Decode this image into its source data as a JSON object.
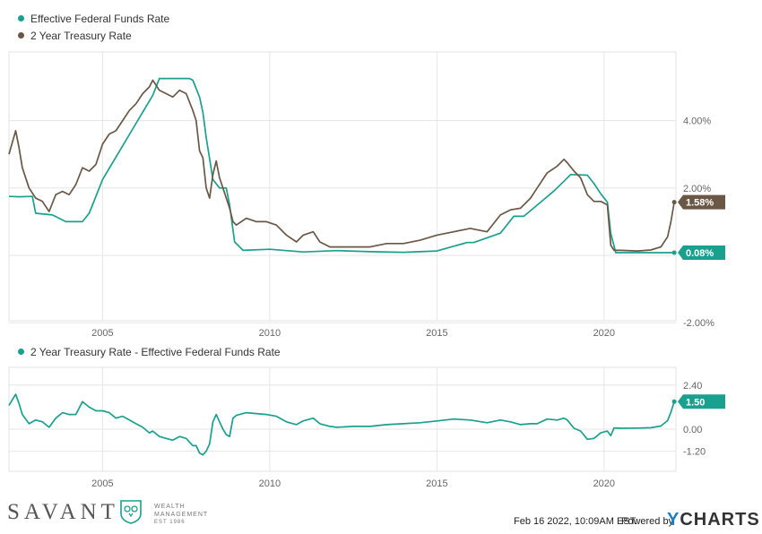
{
  "chart_data": [
    {
      "type": "line",
      "series": [
        {
          "name": "Effective Federal Funds Rate",
          "color": "#1aa08e",
          "x": [
            2002.2,
            2002.5,
            2002.9,
            2003.0,
            2003.5,
            2003.9,
            2004.4,
            2004.6,
            2004.8,
            2005.0,
            2005.3,
            2005.6,
            2005.9,
            2006.2,
            2006.5,
            2006.7,
            2007.0,
            2007.3,
            2007.6,
            2007.7,
            2007.9,
            2008.0,
            2008.1,
            2008.3,
            2008.5,
            2008.7,
            2008.8,
            2008.95,
            2009.2,
            2010.0,
            2011.0,
            2012.0,
            2013.0,
            2014.0,
            2015.0,
            2015.9,
            2016.1,
            2016.9,
            2017.1,
            2017.3,
            2017.6,
            2017.9,
            2018.2,
            2018.5,
            2018.8,
            2019.0,
            2019.5,
            2019.7,
            2019.9,
            2020.1,
            2020.2,
            2020.35,
            2021.0,
            2022.0,
            2022.1
          ],
          "values": [
            1.75,
            1.74,
            1.75,
            1.25,
            1.2,
            1.0,
            1.0,
            1.25,
            1.75,
            2.25,
            2.75,
            3.25,
            3.75,
            4.25,
            4.75,
            5.25,
            5.25,
            5.25,
            5.25,
            5.2,
            4.7,
            4.25,
            3.5,
            2.25,
            2.0,
            2.0,
            1.5,
            0.4,
            0.15,
            0.18,
            0.1,
            0.14,
            0.11,
            0.09,
            0.13,
            0.38,
            0.38,
            0.66,
            0.91,
            1.16,
            1.16,
            1.41,
            1.66,
            1.91,
            2.2,
            2.4,
            2.38,
            2.13,
            1.83,
            1.58,
            0.65,
            0.08,
            0.08,
            0.08,
            0.08
          ]
        },
        {
          "name": "2 Year Treasury Rate",
          "color": "#6b5745",
          "x": [
            2002.2,
            2002.4,
            2002.5,
            2002.6,
            2002.8,
            2003.0,
            2003.2,
            2003.4,
            2003.6,
            2003.8,
            2004.0,
            2004.2,
            2004.4,
            2004.6,
            2004.8,
            2005.0,
            2005.2,
            2005.4,
            2005.6,
            2005.8,
            2006.0,
            2006.2,
            2006.4,
            2006.5,
            2006.7,
            2006.9,
            2007.1,
            2007.3,
            2007.5,
            2007.7,
            2007.8,
            2007.9,
            2008.0,
            2008.1,
            2008.2,
            2008.3,
            2008.4,
            2008.5,
            2008.6,
            2008.7,
            2008.8,
            2008.9,
            2009.0,
            2009.3,
            2009.6,
            2009.9,
            2010.2,
            2010.5,
            2010.8,
            2011.0,
            2011.3,
            2011.5,
            2011.8,
            2012.0,
            2012.5,
            2013.0,
            2013.5,
            2014.0,
            2014.5,
            2015.0,
            2015.5,
            2016.0,
            2016.5,
            2016.9,
            2017.2,
            2017.5,
            2017.8,
            2018.0,
            2018.3,
            2018.6,
            2018.8,
            2018.9,
            2019.1,
            2019.3,
            2019.5,
            2019.7,
            2019.9,
            2020.1,
            2020.2,
            2020.3,
            2020.5,
            2021.0,
            2021.4,
            2021.7,
            2021.9,
            2022.0,
            2022.1
          ],
          "values": [
            3.0,
            3.7,
            3.2,
            2.6,
            2.0,
            1.7,
            1.6,
            1.3,
            1.8,
            1.9,
            1.8,
            2.1,
            2.6,
            2.5,
            2.7,
            3.3,
            3.6,
            3.7,
            4.0,
            4.3,
            4.5,
            4.8,
            5.0,
            5.2,
            4.9,
            4.8,
            4.7,
            4.9,
            4.8,
            4.3,
            4.0,
            3.1,
            2.9,
            2.0,
            1.7,
            2.4,
            2.8,
            2.3,
            2.0,
            1.7,
            1.4,
            1.0,
            0.9,
            1.1,
            1.0,
            1.0,
            0.9,
            0.6,
            0.4,
            0.6,
            0.7,
            0.4,
            0.25,
            0.25,
            0.25,
            0.25,
            0.35,
            0.35,
            0.45,
            0.6,
            0.7,
            0.8,
            0.7,
            1.2,
            1.35,
            1.4,
            1.7,
            2.0,
            2.45,
            2.65,
            2.85,
            2.75,
            2.5,
            2.3,
            1.8,
            1.6,
            1.6,
            1.5,
            0.3,
            0.15,
            0.15,
            0.13,
            0.16,
            0.25,
            0.55,
            1.0,
            1.58
          ]
        }
      ],
      "xticks": [
        "2005",
        "2010",
        "2015",
        "2020"
      ],
      "yticks": [
        "4.00%",
        "2.00%",
        "-2.00%"
      ],
      "ylim": [
        -2.0,
        6.0
      ],
      "grid": true,
      "legend": "top-left",
      "last_value_labels": [
        "1.58%",
        "0.08%"
      ]
    },
    {
      "type": "line",
      "series": [
        {
          "name": "2 Year Treasury Rate - Effective Federal Funds Rate",
          "color": "#1aa08e",
          "x": [
            2002.2,
            2002.4,
            2002.5,
            2002.6,
            2002.8,
            2003.0,
            2003.2,
            2003.4,
            2003.6,
            2003.8,
            2004.0,
            2004.2,
            2004.4,
            2004.6,
            2004.8,
            2005.0,
            2005.2,
            2005.4,
            2005.6,
            2005.8,
            2006.0,
            2006.2,
            2006.4,
            2006.5,
            2006.7,
            2006.9,
            2007.1,
            2007.3,
            2007.5,
            2007.7,
            2007.8,
            2007.9,
            2008.0,
            2008.1,
            2008.2,
            2008.3,
            2008.4,
            2008.5,
            2008.6,
            2008.7,
            2008.8,
            2008.9,
            2009.0,
            2009.3,
            2009.6,
            2009.9,
            2010.2,
            2010.5,
            2010.8,
            2011.0,
            2011.3,
            2011.5,
            2011.8,
            2012.0,
            2012.5,
            2013.0,
            2013.5,
            2014.0,
            2014.5,
            2015.0,
            2015.5,
            2016.0,
            2016.5,
            2016.9,
            2017.2,
            2017.5,
            2017.8,
            2018.0,
            2018.3,
            2018.6,
            2018.8,
            2018.9,
            2019.1,
            2019.3,
            2019.5,
            2019.7,
            2019.9,
            2020.1,
            2020.2,
            2020.3,
            2020.5,
            2021.0,
            2021.4,
            2021.7,
            2021.9,
            2022.0,
            2022.1
          ],
          "values": [
            1.3,
            1.9,
            1.4,
            0.8,
            0.3,
            0.5,
            0.4,
            0.1,
            0.6,
            0.9,
            0.8,
            0.8,
            1.5,
            1.2,
            1.0,
            1.0,
            0.9,
            0.6,
            0.7,
            0.5,
            0.3,
            0.1,
            -0.2,
            -0.1,
            -0.4,
            -0.5,
            -0.6,
            -0.4,
            -0.5,
            -0.9,
            -0.9,
            -1.3,
            -1.4,
            -1.2,
            -0.8,
            0.4,
            0.8,
            0.4,
            0.0,
            -0.3,
            -0.4,
            0.6,
            0.75,
            0.9,
            0.85,
            0.8,
            0.7,
            0.4,
            0.25,
            0.45,
            0.6,
            0.3,
            0.15,
            0.1,
            0.15,
            0.15,
            0.25,
            0.3,
            0.35,
            0.45,
            0.55,
            0.5,
            0.35,
            0.5,
            0.4,
            0.25,
            0.3,
            0.3,
            0.55,
            0.5,
            0.6,
            0.5,
            0.05,
            -0.1,
            -0.55,
            -0.5,
            -0.2,
            -0.1,
            -0.35,
            0.07,
            0.05,
            0.06,
            0.08,
            0.17,
            0.47,
            0.92,
            1.5
          ]
        }
      ],
      "xticks": [
        "2005",
        "2010",
        "2015",
        "2020"
      ],
      "yticks": [
        "2.40",
        "0.00",
        "-1.20"
      ],
      "ylim": [
        -2.2,
        3.2
      ],
      "grid": true,
      "legend": "top-left",
      "last_value_labels": [
        "1.50"
      ]
    }
  ],
  "footer": {
    "timestamp": "Feb 16 2022, 10:09AM EST.",
    "powered_by": "Powered by",
    "brand_y": "Y",
    "brand_rest": "CHARTS"
  },
  "logo": {
    "company": "SAVANT",
    "tagline_1": "WEALTH",
    "tagline_2": "MANAGEMENT",
    "tagline_3": "EST 1986"
  }
}
